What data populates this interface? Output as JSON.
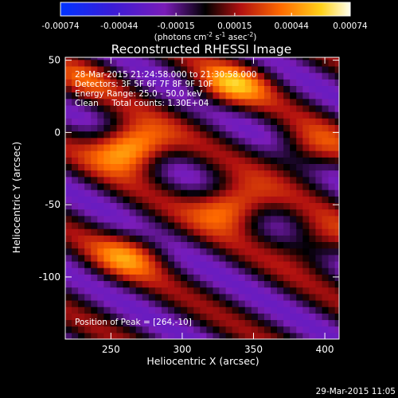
{
  "chart_data": {
    "type": "heatmap",
    "title": "Reconstructed RHESSI Image",
    "xlabel": "Heliocentric X (arcsec)",
    "ylabel": "Heliocentric Y (arcsec)",
    "xlim": [
      218,
      410
    ],
    "ylim": [
      -143,
      52
    ],
    "x_ticks": [
      "250",
      "300",
      "350",
      "400"
    ],
    "y_ticks": [
      "50",
      "0",
      "-50",
      "-100"
    ],
    "colorbar": {
      "ticks": [
        "-0.00074",
        "-0.00044",
        "-0.00015",
        "0.00015",
        "0.00044",
        "0.00074"
      ],
      "unit_main": "(photons cm",
      "unit_exp1": "-2",
      "unit_mid1": " s",
      "unit_exp2": "-1",
      "unit_mid2": " asec",
      "unit_exp3": "-2",
      "unit_close": ")",
      "range": [
        -0.00074,
        0.00074
      ]
    },
    "annotations": [
      "28-Mar-2015 21:24:58.000 to 21:30:58.000",
      "Detectors: 3F 5F 6F 7F 8F 9F 10F",
      "Energy Range: 25.0 - 50.0 keV",
      "Clean     Total counts: 1.30E+04"
    ],
    "peak_label": "Position of Peak = [264,-10]",
    "peaks": [
      {
        "x": 264,
        "y": -10,
        "value": 0.00074
      },
      {
        "x": 335,
        "y": -50,
        "value": 0.00058
      },
      {
        "x": 335,
        "y": 33,
        "value": 0.00046
      },
      {
        "x": 262,
        "y": -85,
        "value": 0.00038
      },
      {
        "x": 390,
        "y": -12,
        "value": 0.00032
      },
      {
        "x": 395,
        "y": -75,
        "value": 0.0003
      },
      {
        "x": 232,
        "y": 37,
        "value": 0.00022
      }
    ],
    "grid": false
  },
  "footer": {
    "timestamp": "29-Mar-2015 11:05"
  }
}
